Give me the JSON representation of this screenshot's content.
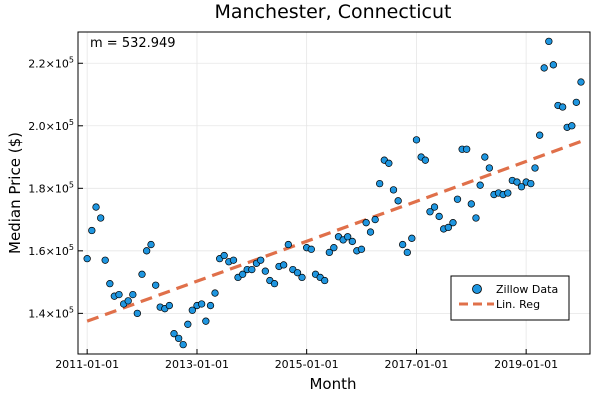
{
  "chart_data": {
    "type": "scatter",
    "title": "Manchester, Connecticut",
    "xlabel": "Month",
    "ylabel": "Median Price ($)",
    "annotation": "m = 532.949",
    "x_ticks": [
      "2011-01-01",
      "2013-01-01",
      "2015-01-01",
      "2017-01-01",
      "2019-01-01"
    ],
    "y_ticks": [
      {
        "value": 140000,
        "mantissa": "1.4",
        "exp": "5"
      },
      {
        "value": 160000,
        "mantissa": "1.6",
        "exp": "5"
      },
      {
        "value": 180000,
        "mantissa": "1.8",
        "exp": "5"
      },
      {
        "value": 200000,
        "mantissa": "2.0",
        "exp": "5"
      },
      {
        "value": 220000,
        "mantissa": "2.2",
        "exp": "5"
      }
    ],
    "xlim": [
      "2010-11-01",
      "2020-03-01"
    ],
    "ylim": [
      127000,
      230000
    ],
    "grid": true,
    "legend_position": "bottom-right",
    "colors": {
      "scatter": "#1f96e0",
      "regression": "#e0704a"
    },
    "series": [
      {
        "name": "Zillow Data",
        "kind": "scatter",
        "points": [
          [
            "2011-01-01",
            157500
          ],
          [
            "2011-02-01",
            166500
          ],
          [
            "2011-03-01",
            174000
          ],
          [
            "2011-04-01",
            170500
          ],
          [
            "2011-05-01",
            157000
          ],
          [
            "2011-06-01",
            149500
          ],
          [
            "2011-07-01",
            145500
          ],
          [
            "2011-08-01",
            146000
          ],
          [
            "2011-09-01",
            143000
          ],
          [
            "2011-10-01",
            144000
          ],
          [
            "2011-11-01",
            146000
          ],
          [
            "2011-12-01",
            140000
          ],
          [
            "2012-01-01",
            152500
          ],
          [
            "2012-02-01",
            160000
          ],
          [
            "2012-03-01",
            162000
          ],
          [
            "2012-04-01",
            149000
          ],
          [
            "2012-05-01",
            142000
          ],
          [
            "2012-06-01",
            141500
          ],
          [
            "2012-07-01",
            142500
          ],
          [
            "2012-08-01",
            133500
          ],
          [
            "2012-09-01",
            132000
          ],
          [
            "2012-10-01",
            130000
          ],
          [
            "2012-11-01",
            136500
          ],
          [
            "2012-12-01",
            141000
          ],
          [
            "2013-01-01",
            142500
          ],
          [
            "2013-02-01",
            143000
          ],
          [
            "2013-03-01",
            137500
          ],
          [
            "2013-04-01",
            142500
          ],
          [
            "2013-05-01",
            146500
          ],
          [
            "2013-06-01",
            157500
          ],
          [
            "2013-07-01",
            158500
          ],
          [
            "2013-08-01",
            156500
          ],
          [
            "2013-09-01",
            157000
          ],
          [
            "2013-10-01",
            151500
          ],
          [
            "2013-11-01",
            152500
          ],
          [
            "2013-12-01",
            154000
          ],
          [
            "2014-01-01",
            154000
          ],
          [
            "2014-02-01",
            156000
          ],
          [
            "2014-03-01",
            157000
          ],
          [
            "2014-04-01",
            153500
          ],
          [
            "2014-05-01",
            150500
          ],
          [
            "2014-06-01",
            149500
          ],
          [
            "2014-07-01",
            155000
          ],
          [
            "2014-08-01",
            155500
          ],
          [
            "2014-09-01",
            162000
          ],
          [
            "2014-10-01",
            154000
          ],
          [
            "2014-11-01",
            153000
          ],
          [
            "2014-12-01",
            151500
          ],
          [
            "2015-01-01",
            161000
          ],
          [
            "2015-02-01",
            160500
          ],
          [
            "2015-03-01",
            152500
          ],
          [
            "2015-04-01",
            151500
          ],
          [
            "2015-05-01",
            150500
          ],
          [
            "2015-06-01",
            159500
          ],
          [
            "2015-07-01",
            161000
          ],
          [
            "2015-08-01",
            164500
          ],
          [
            "2015-09-01",
            163500
          ],
          [
            "2015-10-01",
            164500
          ],
          [
            "2015-11-01",
            163000
          ],
          [
            "2015-12-01",
            160000
          ],
          [
            "2016-01-01",
            160500
          ],
          [
            "2016-02-01",
            169000
          ],
          [
            "2016-03-01",
            166000
          ],
          [
            "2016-04-01",
            170000
          ],
          [
            "2016-05-01",
            181500
          ],
          [
            "2016-06-01",
            189000
          ],
          [
            "2016-07-01",
            188000
          ],
          [
            "2016-08-01",
            179500
          ],
          [
            "2016-09-01",
            176000
          ],
          [
            "2016-10-01",
            162000
          ],
          [
            "2016-11-01",
            159500
          ],
          [
            "2016-12-01",
            164000
          ],
          [
            "2017-01-01",
            195500
          ],
          [
            "2017-02-01",
            190000
          ],
          [
            "2017-03-01",
            189000
          ],
          [
            "2017-04-01",
            172500
          ],
          [
            "2017-05-01",
            174000
          ],
          [
            "2017-06-01",
            171000
          ],
          [
            "2017-07-01",
            167000
          ],
          [
            "2017-08-01",
            167500
          ],
          [
            "2017-09-01",
            169000
          ],
          [
            "2017-10-01",
            176500
          ],
          [
            "2017-11-01",
            192500
          ],
          [
            "2017-12-01",
            192500
          ],
          [
            "2018-01-01",
            175000
          ],
          [
            "2018-02-01",
            170500
          ],
          [
            "2018-03-01",
            181000
          ],
          [
            "2018-04-01",
            190000
          ],
          [
            "2018-05-01",
            186500
          ],
          [
            "2018-06-01",
            178000
          ],
          [
            "2018-07-01",
            178500
          ],
          [
            "2018-08-01",
            178000
          ],
          [
            "2018-09-01",
            178500
          ],
          [
            "2018-10-01",
            182500
          ],
          [
            "2018-11-01",
            182000
          ],
          [
            "2018-12-01",
            180500
          ],
          [
            "2019-01-01",
            182000
          ],
          [
            "2019-02-01",
            181500
          ],
          [
            "2019-03-01",
            186500
          ],
          [
            "2019-04-01",
            197000
          ],
          [
            "2019-05-01",
            218500
          ],
          [
            "2019-06-01",
            227000
          ],
          [
            "2019-07-01",
            219500
          ],
          [
            "2019-08-01",
            206500
          ],
          [
            "2019-09-01",
            206000
          ],
          [
            "2019-10-01",
            199500
          ],
          [
            "2019-11-01",
            200000
          ],
          [
            "2019-12-01",
            207500
          ],
          [
            "2020-01-01",
            214000
          ]
        ]
      },
      {
        "name": "Lin. Reg",
        "kind": "line",
        "points": [
          [
            "2011-01-01",
            137500
          ],
          [
            "2020-01-01",
            195000
          ]
        ]
      }
    ]
  }
}
